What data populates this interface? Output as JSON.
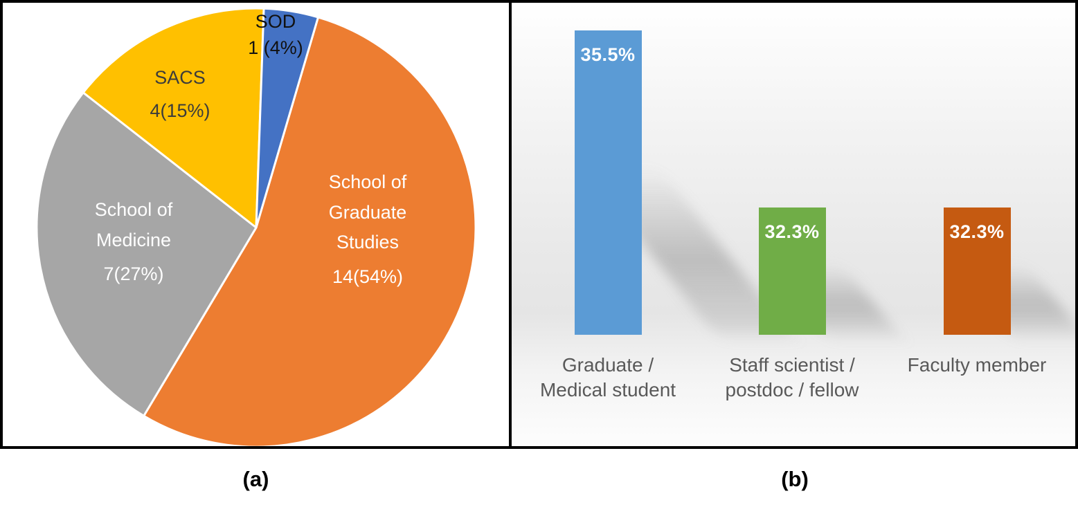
{
  "figure": {
    "caption_a": "(a)",
    "caption_b": "(b)"
  },
  "chart_data": [
    {
      "type": "pie",
      "panel": "a",
      "start_angle_deg": 16.4,
      "slice_border_color": "#FFFFFF",
      "slices": [
        {
          "label": "School of Graduate Studies",
          "count": 14,
          "percent": 54,
          "value_label": "14(54%)",
          "color": "#ED7D31",
          "label_color": "#FFFFFF"
        },
        {
          "label": "School of Medicine",
          "count": 7,
          "percent": 27,
          "value_label": "7(27%)",
          "color": "#A6A6A6",
          "label_color": "#FFFFFF"
        },
        {
          "label": "SACS",
          "count": 4,
          "percent": 15,
          "value_label": "4(15%)",
          "color": "#FFC000",
          "label_color": "#3B3B3B"
        },
        {
          "label": "SOD",
          "count": 1,
          "percent": 4,
          "value_label": "1 (4%)",
          "color": "#4472C4",
          "label_color": "#111111"
        }
      ]
    },
    {
      "type": "bar",
      "panel": "b",
      "categories": [
        [
          "Graduate /",
          "Medical student"
        ],
        [
          "Staff scientist /",
          "postdoc / fellow"
        ],
        [
          "Faculty member"
        ]
      ],
      "values": [
        35.5,
        32.3,
        32.3
      ],
      "value_labels": [
        "35.5%",
        "32.3%",
        "32.3%"
      ],
      "colors": [
        "#5B9BD5",
        "#70AD47",
        "#C55A11"
      ],
      "value_label_color": "#FFFFFF",
      "category_label_color": "#595959",
      "ylim": [
        30,
        36
      ],
      "gridlines": false,
      "legend": false
    }
  ]
}
